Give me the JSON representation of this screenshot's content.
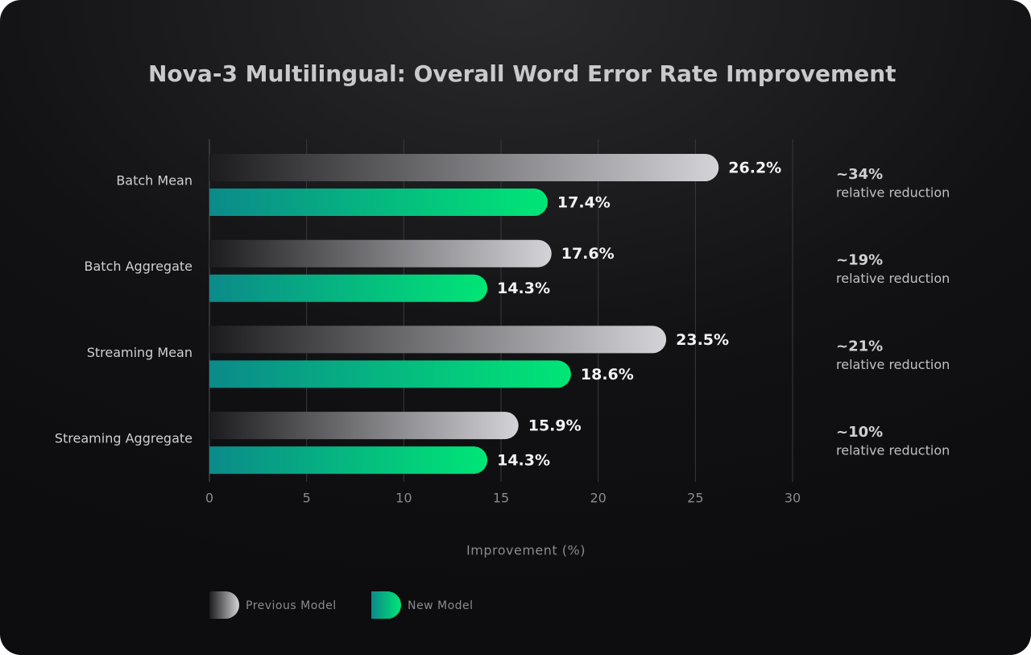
{
  "chart_data": {
    "type": "bar",
    "orientation": "horizontal",
    "title": "Nova-3 Multilingual: Overall Word Error Rate Improvement",
    "categories": [
      "Batch Mean",
      "Batch Aggregate",
      "Streaming Mean",
      "Streaming Aggregate"
    ],
    "series": [
      {
        "name": "Previous Model",
        "color": "#d4d4d8",
        "gradient_start": "#1c1c1f",
        "values": [
          26.2,
          17.6,
          23.5,
          15.9
        ],
        "value_labels": [
          "26.2%",
          "17.6%",
          "23.5%",
          "15.9%"
        ]
      },
      {
        "name": "New Model",
        "color": "#00e676",
        "gradient_start": "#0b8a8a",
        "values": [
          17.4,
          14.3,
          18.6,
          14.3
        ],
        "value_labels": [
          "17.4%",
          "14.3%",
          "18.6%",
          "14.3%"
        ]
      }
    ],
    "annotations": [
      {
        "label": "~34%",
        "text": "relative reduction"
      },
      {
        "label": "~19%",
        "text": "relative reduction"
      },
      {
        "label": "~21%",
        "text": "relative reduction"
      },
      {
        "label": "~10%",
        "text": "relative reduction"
      }
    ],
    "xlabel": "Improvement (%)",
    "xlim": [
      0,
      30
    ],
    "xticks": [
      0,
      5,
      10,
      15,
      20,
      25,
      30
    ],
    "grid": true
  }
}
